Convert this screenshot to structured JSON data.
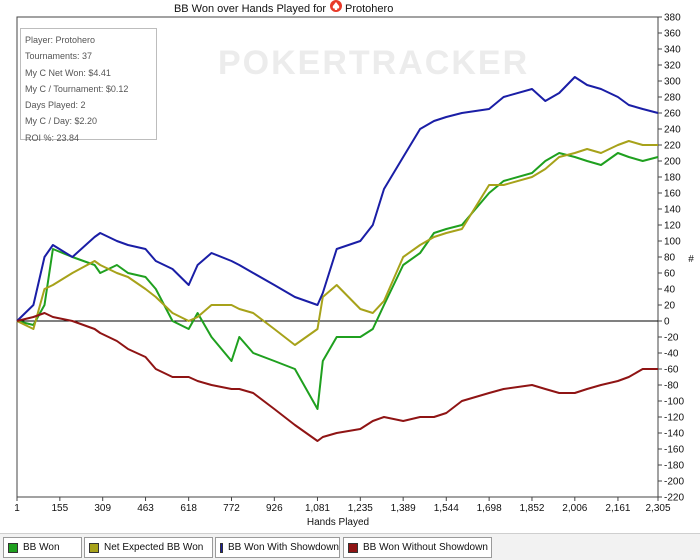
{
  "chart_data": {
    "type": "line",
    "title": "BB Won over Hands Played for",
    "title_player": "Protohero",
    "xlabel": "Hands Played",
    "ylabel": "",
    "y_axis_side": "right",
    "watermark": "POKERTRACKER",
    "xlim": [
      1,
      2305
    ],
    "ylim": [
      -220,
      380
    ],
    "x_ticks": [
      1,
      155,
      309,
      463,
      618,
      772,
      926,
      1081,
      1235,
      1389,
      1544,
      1698,
      1852,
      2006,
      2161,
      2305
    ],
    "x_tick_labels": [
      "1",
      "155",
      "309",
      "463",
      "618",
      "772",
      "926",
      "1,081",
      "1,235",
      "1,389",
      "1,544",
      "1,698",
      "1,852",
      "2,006",
      "2,161",
      "2,305"
    ],
    "y_ticks": [
      -220,
      -200,
      -180,
      -160,
      -140,
      -120,
      -100,
      -80,
      -60,
      -40,
      -20,
      0,
      20,
      40,
      60,
      80,
      100,
      120,
      140,
      160,
      180,
      200,
      220,
      240,
      260,
      280,
      300,
      320,
      340,
      360,
      380
    ],
    "grid": false,
    "zero_line": true,
    "legend_position": "bottom",
    "stats": [
      "Player: Protohero",
      "Tournaments: 37",
      "My C Net Won: $4.41",
      "My C / Tournament: $0.12",
      "Days Played: 2",
      "My C / Day: $2.20",
      "ROI %: 23.84"
    ],
    "series": [
      {
        "name": "BB Won",
        "color": "#1fa01f",
        "x": [
          1,
          60,
          100,
          130,
          200,
          280,
          300,
          360,
          400,
          463,
          500,
          560,
          618,
          650,
          700,
          772,
          800,
          850,
          926,
          1000,
          1081,
          1100,
          1150,
          1235,
          1280,
          1320,
          1389,
          1450,
          1500,
          1544,
          1600,
          1698,
          1750,
          1852,
          1900,
          1950,
          2006,
          2050,
          2100,
          2161,
          2200,
          2250,
          2305
        ],
        "y": [
          0,
          -5,
          20,
          90,
          80,
          70,
          60,
          70,
          60,
          55,
          40,
          0,
          -10,
          10,
          -20,
          -50,
          -20,
          -40,
          -50,
          -60,
          -110,
          -50,
          -20,
          -20,
          -10,
          20,
          70,
          85,
          110,
          115,
          120,
          160,
          175,
          185,
          200,
          210,
          205,
          200,
          195,
          210,
          205,
          200,
          205
        ]
      },
      {
        "name": "Net Expected BB Won",
        "color": "#a7a21a",
        "x": [
          1,
          60,
          100,
          130,
          200,
          280,
          300,
          360,
          400,
          463,
          500,
          560,
          618,
          650,
          700,
          772,
          800,
          850,
          926,
          1000,
          1081,
          1100,
          1150,
          1235,
          1280,
          1320,
          1389,
          1450,
          1500,
          1544,
          1600,
          1698,
          1750,
          1852,
          1900,
          1950,
          2006,
          2050,
          2100,
          2161,
          2200,
          2250,
          2305
        ],
        "y": [
          0,
          -10,
          40,
          45,
          60,
          75,
          70,
          60,
          55,
          40,
          30,
          10,
          0,
          5,
          20,
          20,
          15,
          10,
          -10,
          -30,
          -10,
          30,
          45,
          15,
          10,
          25,
          80,
          95,
          105,
          110,
          115,
          170,
          170,
          180,
          190,
          205,
          210,
          215,
          210,
          220,
          225,
          220,
          220
        ]
      },
      {
        "name": "BB Won With Showdown",
        "color": "#1a1ea6",
        "x": [
          1,
          60,
          100,
          130,
          200,
          280,
          300,
          360,
          400,
          463,
          500,
          560,
          618,
          650,
          700,
          772,
          800,
          850,
          926,
          1000,
          1081,
          1100,
          1150,
          1235,
          1280,
          1320,
          1389,
          1450,
          1500,
          1544,
          1600,
          1698,
          1750,
          1852,
          1900,
          1950,
          2006,
          2050,
          2100,
          2161,
          2200,
          2250,
          2305
        ],
        "y": [
          0,
          20,
          80,
          95,
          80,
          105,
          110,
          100,
          95,
          90,
          75,
          65,
          45,
          70,
          85,
          75,
          70,
          60,
          45,
          30,
          20,
          35,
          90,
          100,
          120,
          165,
          205,
          240,
          250,
          255,
          260,
          265,
          280,
          290,
          275,
          285,
          305,
          295,
          290,
          280,
          270,
          265,
          260
        ]
      },
      {
        "name": "BB Won Without Showdown",
        "color": "#8f1414",
        "x": [
          1,
          60,
          100,
          130,
          200,
          280,
          300,
          360,
          400,
          463,
          500,
          560,
          618,
          650,
          700,
          772,
          800,
          850,
          926,
          1000,
          1081,
          1100,
          1150,
          1235,
          1280,
          1320,
          1389,
          1450,
          1500,
          1544,
          1600,
          1698,
          1750,
          1852,
          1900,
          1950,
          2006,
          2050,
          2100,
          2161,
          2200,
          2250,
          2305
        ],
        "y": [
          0,
          5,
          10,
          5,
          0,
          -10,
          -15,
          -25,
          -35,
          -45,
          -60,
          -70,
          -70,
          -75,
          -80,
          -85,
          -85,
          -90,
          -110,
          -130,
          -150,
          -145,
          -140,
          -135,
          -125,
          -120,
          -125,
          -120,
          -120,
          -115,
          -100,
          -90,
          -85,
          -80,
          -85,
          -90,
          -90,
          -85,
          -80,
          -75,
          -70,
          -60,
          -60
        ]
      }
    ]
  }
}
